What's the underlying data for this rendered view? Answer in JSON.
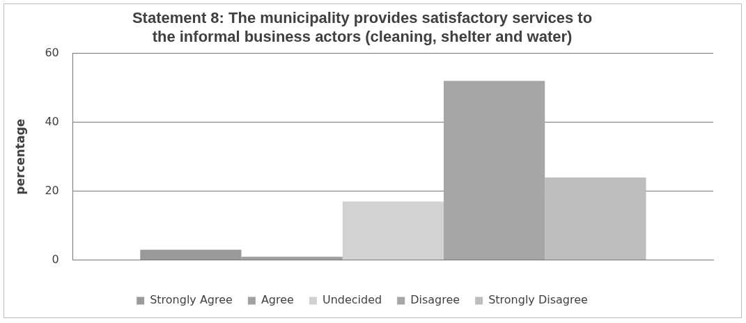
{
  "chart_data": {
    "type": "bar",
    "title": "Statement 8: The municipality provides satisfactory services to\nthe informal business actors (cleaning, shelter and water)",
    "ylabel": "percentage",
    "categories": [
      null
    ],
    "series": [
      {
        "name": "Strongly Agree",
        "color": "#9a9a9a",
        "values": [
          3
        ]
      },
      {
        "name": "Agree",
        "color": "#a2a2a2",
        "values": [
          1
        ]
      },
      {
        "name": "Undecided",
        "color": "#d2d2d2",
        "values": [
          17
        ]
      },
      {
        "name": "Disagree",
        "color": "#a6a6a6",
        "values": [
          52
        ]
      },
      {
        "name": "Strongly Disagree",
        "color": "#bdbdbd",
        "values": [
          24
        ]
      }
    ],
    "ylim": [
      0,
      60
    ],
    "yticks": [
      0,
      20,
      40,
      60
    ],
    "grid": "y",
    "legend": "bottom"
  }
}
